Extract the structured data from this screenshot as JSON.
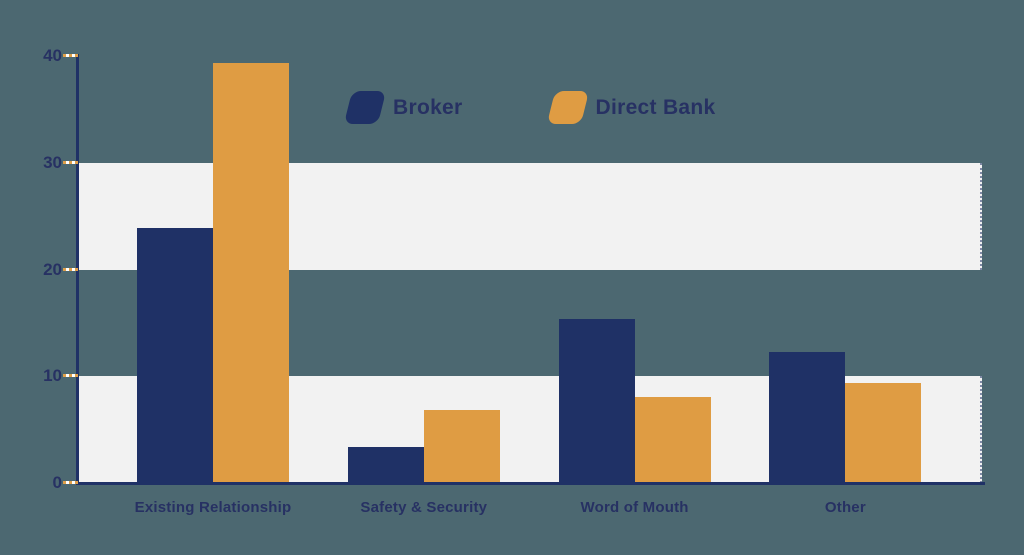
{
  "colors": {
    "background": "#4c6871",
    "band": "#f2f2f2",
    "navy": "#1f3166",
    "orange": "#df9c43",
    "text": "#273163",
    "tick_dash": "#e0a04a"
  },
  "legend": {
    "items": [
      {
        "label": "Broker",
        "color": "#1f3166"
      },
      {
        "label": "Direct Bank",
        "color": "#df9c43"
      }
    ]
  },
  "chart_data": {
    "type": "bar",
    "title": "",
    "xlabel": "",
    "ylabel": "",
    "categories": [
      "Existing Relationship",
      "Safety & Security",
      "Word of Mouth",
      "Other"
    ],
    "series": [
      {
        "name": "Broker",
        "color": "#1f3166",
        "values": [
          23.9,
          3.4,
          15.4,
          12.3
        ]
      },
      {
        "name": "Direct Bank",
        "color": "#df9c43",
        "values": [
          39.3,
          6.8,
          8.1,
          9.4
        ]
      }
    ],
    "y_ticks": [
      0,
      10,
      20,
      30,
      40
    ],
    "ylim": [
      0,
      40
    ],
    "grid_bands": [
      [
        20,
        30
      ],
      [
        0,
        10
      ]
    ],
    "grid": "horizontal-bands",
    "legend_position": "top-center"
  }
}
